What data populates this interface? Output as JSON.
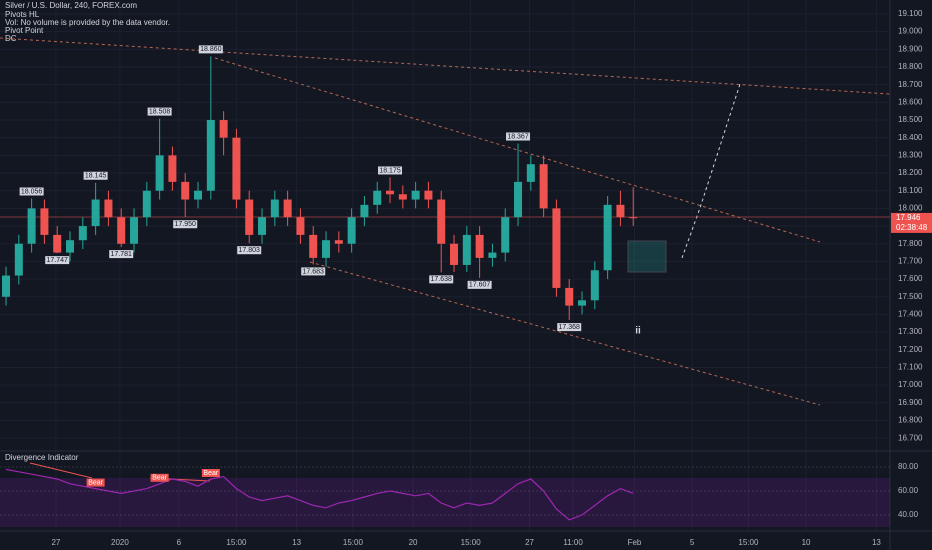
{
  "header": {
    "title": "Silver / U.S. Dollar, 240, FOREX.com",
    "lines": [
      "Pivots HL",
      "Vol: No volume is provided by the data vendor.",
      "Pivot Point",
      "DC"
    ]
  },
  "chart_data": {
    "type": "candlestick",
    "open": [
      17.5,
      17.62,
      17.8,
      18.0,
      17.85,
      17.75,
      17.82,
      17.9,
      18.05,
      17.95,
      17.8,
      17.95,
      18.1,
      18.3,
      18.15,
      18.05,
      18.1,
      18.5,
      18.4,
      18.05,
      17.85,
      17.95,
      18.05,
      17.95,
      17.85,
      17.72,
      17.82,
      17.8,
      17.95,
      18.02,
      18.1,
      18.08,
      18.05,
      18.1,
      18.05,
      17.8,
      17.68,
      17.85,
      17.72,
      17.75,
      17.95,
      18.15,
      18.25,
      18.0,
      17.55,
      17.45,
      17.48,
      17.65,
      18.02,
      17.95
    ],
    "high": [
      17.67,
      17.85,
      18.056,
      18.05,
      17.9,
      17.87,
      17.95,
      18.145,
      18.1,
      18.0,
      18.0,
      18.15,
      18.508,
      18.35,
      18.2,
      18.15,
      18.86,
      18.55,
      18.45,
      18.1,
      18.0,
      18.1,
      18.1,
      18.0,
      17.9,
      17.87,
      17.87,
      18.0,
      18.07,
      18.15,
      18.175,
      18.13,
      18.15,
      18.15,
      18.1,
      17.85,
      17.9,
      17.9,
      17.8,
      18.0,
      18.367,
      18.3,
      18.3,
      18.05,
      17.6,
      17.53,
      17.7,
      18.07,
      18.1,
      18.12
    ],
    "low": [
      17.45,
      17.57,
      17.75,
      17.8,
      17.747,
      17.7,
      17.77,
      17.85,
      17.9,
      17.781,
      17.75,
      17.9,
      18.05,
      18.1,
      17.95,
      18.0,
      18.05,
      18.3,
      18.0,
      17.803,
      17.8,
      17.9,
      17.9,
      17.8,
      17.683,
      17.67,
      17.75,
      17.75,
      17.9,
      17.97,
      18.03,
      18.0,
      18.0,
      18.0,
      17.638,
      17.64,
      17.64,
      17.607,
      17.67,
      17.7,
      17.9,
      18.1,
      17.95,
      17.5,
      17.368,
      17.4,
      17.43,
      17.6,
      17.9,
      17.9
    ],
    "close": [
      17.62,
      17.8,
      18.0,
      17.85,
      17.75,
      17.82,
      17.9,
      18.05,
      17.95,
      17.8,
      17.95,
      18.1,
      18.3,
      18.15,
      18.05,
      18.1,
      18.5,
      18.4,
      18.05,
      17.85,
      17.95,
      18.05,
      17.95,
      17.85,
      17.72,
      17.82,
      17.8,
      17.95,
      18.02,
      18.1,
      18.08,
      18.05,
      18.1,
      18.05,
      17.8,
      17.68,
      17.85,
      17.72,
      17.75,
      17.95,
      18.15,
      18.25,
      18.0,
      17.55,
      17.45,
      17.48,
      17.65,
      18.02,
      17.95,
      17.946
    ],
    "up_color": "#26a69a",
    "down_color": "#ef5350",
    "pivots": [
      {
        "index": 2,
        "value": 18.056,
        "label": "18.056"
      },
      {
        "index": 4,
        "value": 17.747,
        "label": "17.747"
      },
      {
        "index": 7,
        "value": 18.145,
        "label": "18.145"
      },
      {
        "index": 9,
        "value": 17.781,
        "label": "17.781"
      },
      {
        "index": 12,
        "value": 18.508,
        "label": "18.508"
      },
      {
        "index": 14,
        "value": 17.95,
        "label": "17.950"
      },
      {
        "index": 16,
        "value": 18.86,
        "label": "18.860"
      },
      {
        "index": 19,
        "value": 17.803,
        "label": "17.803"
      },
      {
        "index": 24,
        "value": 17.683,
        "label": "17.683"
      },
      {
        "index": 30,
        "value": 18.175,
        "label": "18.175"
      },
      {
        "index": 34,
        "value": 17.638,
        "label": "17.638"
      },
      {
        "index": 37,
        "value": 17.607,
        "label": "17.607"
      },
      {
        "index": 40,
        "value": 18.367,
        "label": "18.367"
      },
      {
        "index": 44,
        "value": 17.368,
        "label": "17.368"
      }
    ],
    "last_price": 17.946,
    "countdown": "02:38:48",
    "wave_label": "ii",
    "xlim": [
      -0.47,
      69.06
    ],
    "xticks": [
      {
        "value": 3.9,
        "label": "27"
      },
      {
        "value": 8.9,
        "label": "2020"
      },
      {
        "value": 13.5,
        "label": "6"
      },
      {
        "value": 18.0,
        "label": "15:00"
      },
      {
        "value": 22.7,
        "label": "13"
      },
      {
        "value": 27.1,
        "label": "15:00"
      },
      {
        "value": 31.8,
        "label": "20"
      },
      {
        "value": 36.3,
        "label": "15:00"
      },
      {
        "value": 40.9,
        "label": "27"
      },
      {
        "value": 44.3,
        "label": "11:00"
      },
      {
        "value": 49.1,
        "label": "Feb"
      },
      {
        "value": 53.6,
        "label": "5"
      },
      {
        "value": 58.0,
        "label": "15:00"
      },
      {
        "value": 62.5,
        "label": "10"
      },
      {
        "value": 68.0,
        "label": "13"
      }
    ],
    "ylim": [
      16.633,
      19.179
    ],
    "yticks": [
      {
        "value": 16.7,
        "label": "16.700"
      },
      {
        "value": 16.8,
        "label": "16.800"
      },
      {
        "value": 16.9,
        "label": "16.900"
      },
      {
        "value": 17.0,
        "label": "17.000"
      },
      {
        "value": 17.1,
        "label": "17.100"
      },
      {
        "value": 17.2,
        "label": "17.200"
      },
      {
        "value": 17.3,
        "label": "17.300"
      },
      {
        "value": 17.4,
        "label": "17.400"
      },
      {
        "value": 17.5,
        "label": "17.500"
      },
      {
        "value": 17.6,
        "label": "17.600"
      },
      {
        "value": 17.7,
        "label": "17.700"
      },
      {
        "value": 17.8,
        "label": "17.800"
      },
      {
        "value": 17.9,
        "label": "17.900"
      },
      {
        "value": 18.0,
        "label": "18.000"
      },
      {
        "value": 18.1,
        "label": "18.100"
      },
      {
        "value": 18.2,
        "label": "18.200"
      },
      {
        "value": 18.3,
        "label": "18.300"
      },
      {
        "value": 18.4,
        "label": "18.400"
      },
      {
        "value": 18.5,
        "label": "18.500"
      },
      {
        "value": 18.6,
        "label": "18.600"
      },
      {
        "value": 18.7,
        "label": "18.700"
      },
      {
        "value": 18.8,
        "label": "18.800"
      },
      {
        "value": 18.9,
        "label": "18.900"
      },
      {
        "value": 19.0,
        "label": "19.000"
      },
      {
        "value": 19.1,
        "label": "19.100"
      }
    ],
    "indicator": {
      "title": "Divergence Indicator",
      "color": "#9c27b0",
      "values": [
        78,
        76,
        74,
        72,
        70,
        66,
        64,
        62,
        60,
        58,
        60,
        62,
        66,
        70,
        68,
        64,
        70,
        72,
        62,
        55,
        52,
        54,
        56,
        52,
        48,
        46,
        50,
        52,
        55,
        58,
        60,
        58,
        56,
        58,
        50,
        46,
        50,
        48,
        50,
        58,
        66,
        70,
        60,
        45,
        36,
        40,
        48,
        56,
        62,
        58
      ],
      "signals": [
        {
          "index": 7,
          "label": "Bear"
        },
        {
          "index": 12,
          "label": "Bear"
        },
        {
          "index": 16,
          "label": "Bear"
        }
      ],
      "ylim": [
        30,
        92.5
      ],
      "yticks": [
        {
          "value": 40,
          "label": "40.00"
        },
        {
          "value": 60,
          "label": "60.00"
        },
        {
          "value": 80,
          "label": "80.00"
        }
      ]
    }
  }
}
